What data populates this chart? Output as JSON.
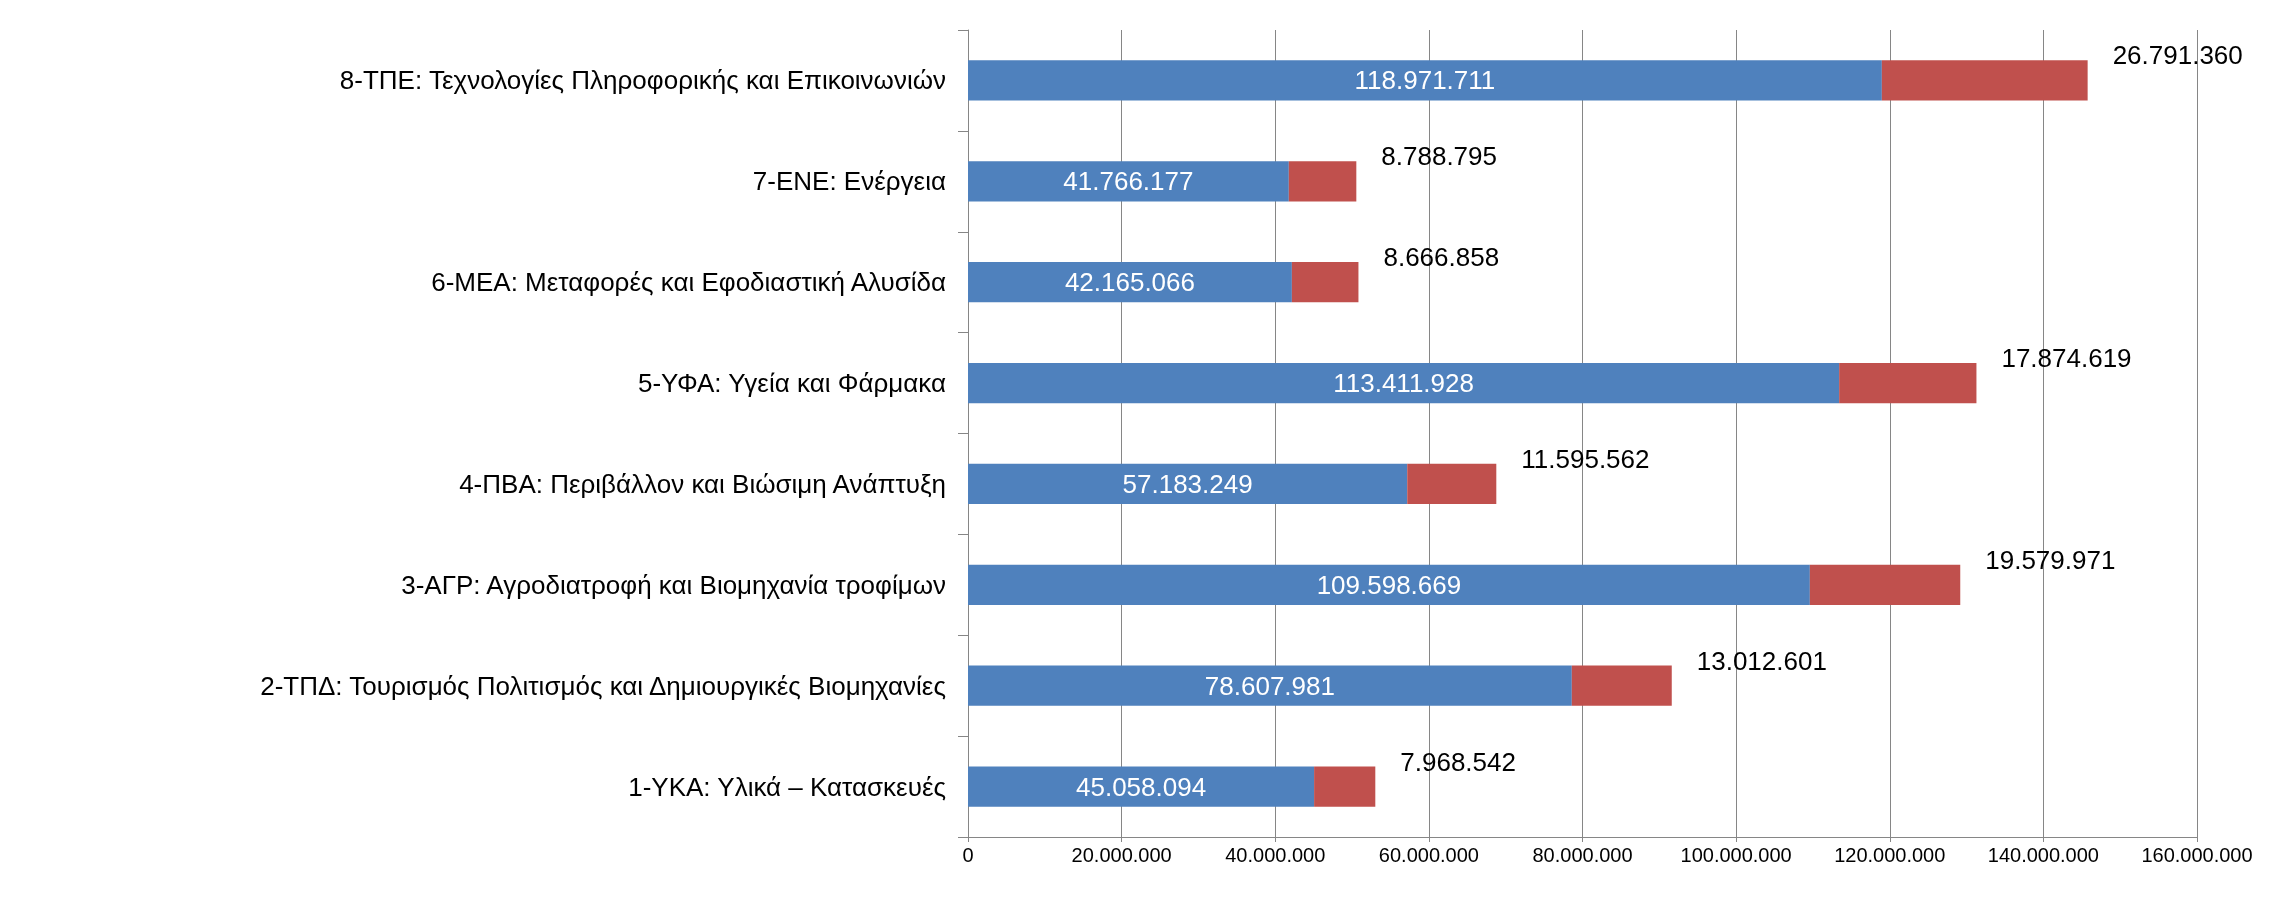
{
  "chart_data": {
    "type": "bar",
    "orientation": "horizontal",
    "stacked": true,
    "grid": "x",
    "categories": [
      "8-ΤΠΕ: Τεχνολογίες Πληροφορικής και Επικοινωνιών",
      "7-ΕΝΕ: Ενέργεια",
      "6-ΜΕΑ: Μεταφορές και Εφοδιαστική Αλυσίδα",
      "5-ΥΦΑ: Υγεία και Φάρμακα",
      "4-ΠΒΑ: Περιβάλλον και Βιώσιμη Ανάπτυξη",
      "3-ΑΓΡ: Αγροδιατροφή και Βιομηχανία τροφίμων",
      "2-ΤΠΔ: Τουρισμός Πολιτισμός και Δημιουργικές Βιομηχανίες",
      "1-ΥΚΑ: Υλικά – Κατασκευές"
    ],
    "series": [
      {
        "color": "#4f81bd",
        "values": [
          118971711,
          41766177,
          42165066,
          113411928,
          57183249,
          109598669,
          78607981,
          45058094
        ],
        "value_labels": [
          "118.971.711",
          "41.766.177",
          "42.165.066",
          "113.411.928",
          "57.183.249",
          "109.598.669",
          "78.607.981",
          "45.058.094"
        ]
      },
      {
        "color": "#c0504d",
        "values": [
          26791360,
          8788795,
          8666858,
          17874619,
          11595562,
          19579971,
          13012601,
          7968542
        ],
        "value_labels": [
          "26.791.360",
          "8.788.795",
          "8.666.858",
          "17.874.619",
          "11.595.562",
          "19.579.971",
          "13.012.601",
          "7.968.542"
        ]
      }
    ],
    "xlim": [
      0,
      160000000
    ],
    "xticks": [
      {
        "value": 0,
        "label": "0"
      },
      {
        "value": 20000000,
        "label": "20.000.000"
      },
      {
        "value": 40000000,
        "label": "40.000.000"
      },
      {
        "value": 60000000,
        "label": "60.000.000"
      },
      {
        "value": 80000000,
        "label": "80.000.000"
      },
      {
        "value": 100000000,
        "label": "100.000.000"
      },
      {
        "value": 120000000,
        "label": "120.000.000"
      },
      {
        "value": 140000000,
        "label": "140.000.000"
      },
      {
        "value": 160000000,
        "label": "160.000.000"
      }
    ]
  }
}
